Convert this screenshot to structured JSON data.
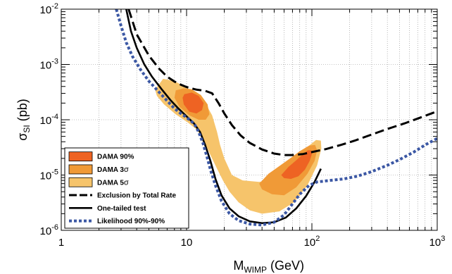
{
  "chart_data": {
    "type": "line",
    "xlabel": "M",
    "xlabel_sub": "WIMP",
    "xlabel_unit": " (GeV)",
    "ylabel": "σ",
    "ylabel_sub": "SI",
    "ylabel_unit": " (pb)",
    "x_scale": "log",
    "y_scale": "log",
    "xlim": [
      1,
      1000
    ],
    "ylim": [
      1e-06,
      0.01
    ],
    "grid": true,
    "legend_position": "bottom-left",
    "x_ticks": [
      {
        "value": 1,
        "base": "1",
        "exp": ""
      },
      {
        "value": 10,
        "base": "10",
        "exp": ""
      },
      {
        "value": 100,
        "base": "10",
        "exp": "2"
      },
      {
        "value": 1000,
        "base": "10",
        "exp": "3"
      }
    ],
    "y_ticks": [
      {
        "value": 1e-06,
        "base": "10",
        "exp": "-6"
      },
      {
        "value": 1e-05,
        "base": "10",
        "exp": "-5"
      },
      {
        "value": 0.0001,
        "base": "10",
        "exp": "-4"
      },
      {
        "value": 0.001,
        "base": "10",
        "exp": "-3"
      },
      {
        "value": 0.01,
        "base": "10",
        "exp": "-2"
      }
    ],
    "regions": [
      {
        "name": "DAMA 5σ",
        "color": "#f6c46b",
        "polygons": [
          [
            [
              5.6,
              0.00035
            ],
            [
              6.5,
              0.00055
            ],
            [
              8,
              0.0005
            ],
            [
              10,
              0.00038
            ],
            [
              12.5,
              0.00028
            ],
            [
              14.5,
              0.00018
            ],
            [
              16,
              0.00012
            ],
            [
              17.5,
              6e-05
            ],
            [
              18.5,
              3.5e-05
            ],
            [
              20,
              2e-05
            ],
            [
              23,
              1e-05
            ],
            [
              28,
              8e-06
            ],
            [
              38,
              7.5e-06
            ],
            [
              50,
              8.5e-06
            ],
            [
              65,
              1.3e-05
            ],
            [
              80,
              2.2e-05
            ],
            [
              95,
              3.4e-05
            ],
            [
              108,
              4.3e-05
            ],
            [
              118,
              4.2e-05
            ],
            [
              119,
              3e-05
            ],
            [
              110,
              1.5e-05
            ],
            [
              92,
              6.5e-06
            ],
            [
              72,
              3.2e-06
            ],
            [
              55,
              2.2e-06
            ],
            [
              40,
              2e-06
            ],
            [
              32,
              2.3e-06
            ],
            [
              26,
              3.2e-06
            ],
            [
              22,
              5e-06
            ],
            [
              19.5,
              8e-06
            ],
            [
              17.5,
              1.3e-05
            ],
            [
              15.8,
              2.1e-05
            ],
            [
              14.2,
              3.5e-05
            ],
            [
              12.2,
              6.5e-05
            ],
            [
              10.2,
              9e-05
            ],
            [
              8.2,
              0.000125
            ],
            [
              6.6,
              0.00019
            ],
            [
              5.8,
              0.00027
            ]
          ]
        ]
      },
      {
        "name": "DAMA 3σ",
        "color": "#f09a37",
        "polygons": [
          [
            [
              8.2,
              0.00034
            ],
            [
              9.5,
              0.00037
            ],
            [
              11,
              0.000355
            ],
            [
              13,
              0.00028
            ],
            [
              14.7,
              0.00019
            ],
            [
              15.2,
              0.000125
            ],
            [
              14.2,
              0.0001
            ],
            [
              12.5,
              0.0001
            ],
            [
              10.5,
              0.00012
            ],
            [
              8.8,
              0.00017
            ],
            [
              8.0,
              0.00025
            ]
          ],
          [
            [
              38,
              7e-06
            ],
            [
              45,
              1.05e-05
            ],
            [
              55,
              1.45e-05
            ],
            [
              67,
              2e-05
            ],
            [
              80,
              2.7e-05
            ],
            [
              95,
              3.4e-05
            ],
            [
              106,
              3.5e-05
            ],
            [
              110,
              2.8e-05
            ],
            [
              105,
              1.8e-05
            ],
            [
              92,
              1.05e-05
            ],
            [
              75,
              6e-06
            ],
            [
              60,
              4.3e-06
            ],
            [
              48,
              4.5e-06
            ],
            [
              40,
              5.5e-06
            ]
          ]
        ]
      },
      {
        "name": "DAMA 90%",
        "color": "#ee6323",
        "polygons": [
          [
            [
              9.6,
              0.00029
            ],
            [
              11,
              0.00031
            ],
            [
              12.5,
              0.00027
            ],
            [
              13.7,
              0.0002
            ],
            [
              13.3,
              0.00015
            ],
            [
              12,
              0.00013
            ],
            [
              10.5,
              0.00014
            ],
            [
              9.5,
              0.00019
            ],
            [
              9.3,
              0.00025
            ]
          ],
          [
            [
              57,
              1e-05
            ],
            [
              65,
              1.4e-05
            ],
            [
              75,
              1.85e-05
            ],
            [
              85,
              2.4e-05
            ],
            [
              93,
              2.8e-05
            ],
            [
              99,
              2.8e-05
            ],
            [
              100,
              2.4e-05
            ],
            [
              96,
              1.8e-05
            ],
            [
              88,
              1.25e-05
            ],
            [
              78,
              9.5e-06
            ],
            [
              68,
              8.5e-06
            ],
            [
              60,
              8.8e-06
            ]
          ]
        ]
      }
    ],
    "series": [
      {
        "name": "Exclusion by Total Rate",
        "style": "dashed",
        "color": "#000000",
        "points": [
          [
            3.45,
            0.01
          ],
          [
            4,
            0.0035
          ],
          [
            5,
            0.00145
          ],
          [
            6,
            0.00085
          ],
          [
            7,
            0.0006
          ],
          [
            8,
            0.00049
          ],
          [
            9,
            0.00043
          ],
          [
            10,
            0.00039
          ],
          [
            12,
            0.00035
          ],
          [
            14,
            0.000335
          ],
          [
            16,
            0.0003
          ],
          [
            18,
            0.0002
          ],
          [
            20,
            0.00013
          ],
          [
            23,
            8e-05
          ],
          [
            27,
            5.2e-05
          ],
          [
            32,
            3.8e-05
          ],
          [
            40,
            2.9e-05
          ],
          [
            50,
            2.45e-05
          ],
          [
            60,
            2.3e-05
          ],
          [
            70,
            2.3e-05
          ],
          [
            85,
            2.4e-05
          ],
          [
            100,
            2.6e-05
          ],
          [
            130,
            2.95e-05
          ],
          [
            170,
            3.5e-05
          ],
          [
            220,
            4.2e-05
          ],
          [
            300,
            5.4e-05
          ],
          [
            400,
            6.8e-05
          ],
          [
            550,
            8.6e-05
          ],
          [
            700,
            0.000105
          ],
          [
            850,
            0.000124
          ],
          [
            1000,
            0.000142
          ]
        ]
      },
      {
        "name": "One-tailed test",
        "style": "solid",
        "color": "#000000",
        "points": [
          [
            3.3,
            0.01
          ],
          [
            3.6,
            0.004
          ],
          [
            4,
            0.002
          ],
          [
            4.6,
            0.001
          ],
          [
            5.3,
            0.0006
          ],
          [
            6.3,
            0.00036
          ],
          [
            7.4,
            0.00023
          ],
          [
            8.6,
            0.00016
          ],
          [
            10,
            0.000115
          ],
          [
            11.5,
            8.5e-05
          ],
          [
            12.8,
            6e-05
          ],
          [
            14,
            3.6e-05
          ],
          [
            15.5,
            1.8e-05
          ],
          [
            17,
            8.5e-06
          ],
          [
            19,
            4.3e-06
          ],
          [
            22,
            2.5e-06
          ],
          [
            26,
            1.8e-06
          ],
          [
            32,
            1.45e-06
          ],
          [
            40,
            1.35e-06
          ],
          [
            50,
            1.4e-06
          ],
          [
            62,
            1.7e-06
          ],
          [
            75,
            2.5e-06
          ],
          [
            90,
            4.2e-06
          ],
          [
            105,
            7.5e-06
          ],
          [
            118,
            1.3e-05
          ]
        ]
      },
      {
        "name": "Likelihood 90%-90%",
        "style": "dotted",
        "color": "#3b57a4",
        "points": [
          [
            2.75,
            0.01
          ],
          [
            3,
            0.005
          ],
          [
            3.3,
            0.0025
          ],
          [
            3.7,
            0.0014
          ],
          [
            4.3,
            0.0008
          ],
          [
            5,
            0.0005
          ],
          [
            6,
            0.00032
          ],
          [
            7,
            0.00022
          ],
          [
            8,
            0.00016
          ],
          [
            9,
            0.00013
          ],
          [
            10,
            0.00011
          ],
          [
            11.5,
            8.5e-05
          ],
          [
            12.5,
            6e-05
          ],
          [
            13.5,
            3.8e-05
          ],
          [
            14.5,
            2.2e-05
          ],
          [
            15.5,
            1.25e-05
          ],
          [
            17,
            6.5e-06
          ],
          [
            19,
            3.4e-06
          ],
          [
            22,
            2e-06
          ],
          [
            26,
            1.5e-06
          ],
          [
            32,
            1.3e-06
          ],
          [
            40,
            1.25e-06
          ],
          [
            50,
            1.4e-06
          ],
          [
            60,
            1.9e-06
          ],
          [
            70,
            3e-06
          ],
          [
            80,
            4.5e-06
          ],
          [
            95,
            6.5e-06
          ],
          [
            110,
            7.5e-06
          ],
          [
            140,
            8e-06
          ],
          [
            180,
            8.5e-06
          ],
          [
            230,
            9.5e-06
          ],
          [
            300,
            1.15e-05
          ],
          [
            400,
            1.5e-05
          ],
          [
            500,
            1.9e-05
          ],
          [
            650,
            2.6e-05
          ],
          [
            800,
            3.5e-05
          ],
          [
            1000,
            4.6e-05
          ]
        ]
      }
    ],
    "legend": [
      {
        "kind": "fill",
        "color": "#ee6323",
        "text": "DAMA 90%",
        "sigma": false
      },
      {
        "kind": "fill",
        "color": "#f09a37",
        "text": "DAMA 3",
        "sigma": true
      },
      {
        "kind": "fill",
        "color": "#f6c46b",
        "text": "DAMA 5",
        "sigma": true
      },
      {
        "kind": "dashed",
        "color": "#000000",
        "text": "Exclusion by Total Rate",
        "sigma": false
      },
      {
        "kind": "solid",
        "color": "#000000",
        "text": "One-tailed test",
        "sigma": false
      },
      {
        "kind": "dotted",
        "color": "#3b57a4",
        "text": "Likelihood 90%-90%",
        "sigma": false
      }
    ],
    "sigma_symbol": "σ"
  }
}
